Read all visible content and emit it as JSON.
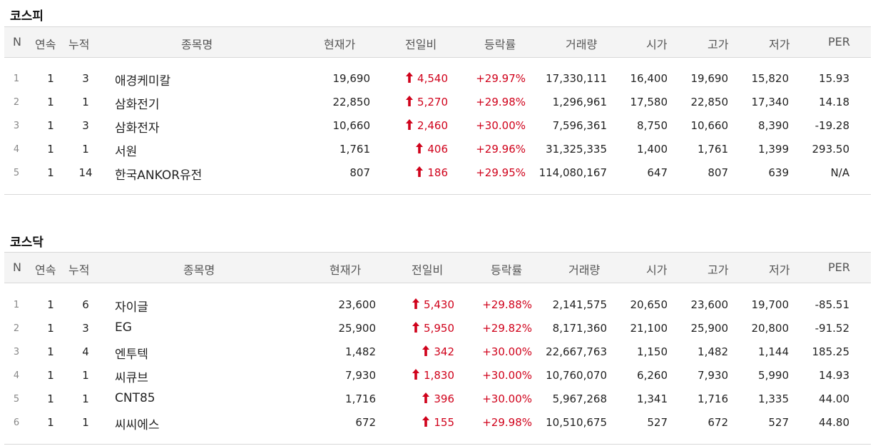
{
  "accent_color": "#d0021b",
  "columns": [
    "N",
    "연속",
    "누적",
    "종목명",
    "현재가",
    "전일비",
    "등락률",
    "거래량",
    "시가",
    "고가",
    "저가",
    "PER"
  ],
  "arrow_icon": "red-up-arrow-icon",
  "kospi": {
    "title": "코스피",
    "rows": [
      {
        "n": "1",
        "cont": "1",
        "cum": "3",
        "name": "애경케미칼",
        "price": "19,690",
        "diff": "4,540",
        "rate": "+29.97%",
        "volume": "17,330,111",
        "open": "16,400",
        "high": "19,690",
        "low": "15,820",
        "per": "15.93"
      },
      {
        "n": "2",
        "cont": "1",
        "cum": "1",
        "name": "삼화전기",
        "price": "22,850",
        "diff": "5,270",
        "rate": "+29.98%",
        "volume": "1,296,961",
        "open": "17,580",
        "high": "22,850",
        "low": "17,340",
        "per": "14.18"
      },
      {
        "n": "3",
        "cont": "1",
        "cum": "3",
        "name": "삼화전자",
        "price": "10,660",
        "diff": "2,460",
        "rate": "+30.00%",
        "volume": "7,596,361",
        "open": "8,750",
        "high": "10,660",
        "low": "8,390",
        "per": "-19.28"
      },
      {
        "n": "4",
        "cont": "1",
        "cum": "1",
        "name": "서원",
        "price": "1,761",
        "diff": "406",
        "rate": "+29.96%",
        "volume": "31,325,335",
        "open": "1,400",
        "high": "1,761",
        "low": "1,399",
        "per": "293.50"
      },
      {
        "n": "5",
        "cont": "1",
        "cum": "14",
        "name": "한국ANKOR유전",
        "price": "807",
        "diff": "186",
        "rate": "+29.95%",
        "volume": "114,080,167",
        "open": "647",
        "high": "807",
        "low": "639",
        "per": "N/A"
      }
    ]
  },
  "kosdaq": {
    "title": "코스닥",
    "rows": [
      {
        "n": "1",
        "cont": "1",
        "cum": "6",
        "name": "자이글",
        "price": "23,600",
        "diff": "5,430",
        "rate": "+29.88%",
        "volume": "2,141,575",
        "open": "20,650",
        "high": "23,600",
        "low": "19,700",
        "per": "-85.51"
      },
      {
        "n": "2",
        "cont": "1",
        "cum": "3",
        "name": "EG",
        "price": "25,900",
        "diff": "5,950",
        "rate": "+29.82%",
        "volume": "8,171,360",
        "open": "21,100",
        "high": "25,900",
        "low": "20,800",
        "per": "-91.52"
      },
      {
        "n": "3",
        "cont": "1",
        "cum": "4",
        "name": "엔투텍",
        "price": "1,482",
        "diff": "342",
        "rate": "+30.00%",
        "volume": "22,667,763",
        "open": "1,150",
        "high": "1,482",
        "low": "1,144",
        "per": "185.25"
      },
      {
        "n": "4",
        "cont": "1",
        "cum": "1",
        "name": "씨큐브",
        "price": "7,930",
        "diff": "1,830",
        "rate": "+30.00%",
        "volume": "10,760,070",
        "open": "6,260",
        "high": "7,930",
        "low": "5,990",
        "per": "14.93"
      },
      {
        "n": "5",
        "cont": "1",
        "cum": "1",
        "name": "CNT85",
        "price": "1,716",
        "diff": "396",
        "rate": "+30.00%",
        "volume": "5,967,268",
        "open": "1,341",
        "high": "1,716",
        "low": "1,335",
        "per": "44.00"
      },
      {
        "n": "6",
        "cont": "1",
        "cum": "1",
        "name": "씨씨에스",
        "price": "672",
        "diff": "155",
        "rate": "+29.98%",
        "volume": "10,510,675",
        "open": "527",
        "high": "672",
        "low": "527",
        "per": "44.80"
      }
    ]
  }
}
